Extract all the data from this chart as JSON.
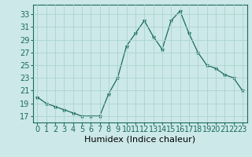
{
  "x": [
    0,
    1,
    2,
    3,
    4,
    5,
    6,
    7,
    8,
    9,
    10,
    11,
    12,
    13,
    14,
    15,
    16,
    17,
    18,
    19,
    20,
    21,
    22,
    23
  ],
  "y": [
    20,
    19,
    18.5,
    18,
    17.5,
    17,
    17,
    17,
    20.5,
    23,
    28,
    30,
    32,
    29.5,
    27.5,
    32,
    33.5,
    30,
    27,
    25,
    24.5,
    23.5,
    23,
    21
  ],
  "line_color": "#1a6b5a",
  "marker": "*",
  "marker_color": "#1a6b5a",
  "bg_color": "#cce8e8",
  "grid_color": "#aad4d0",
  "xlabel": "Humidex (Indice chaleur)",
  "xlim": [
    -0.5,
    23.5
  ],
  "ylim": [
    16,
    34.5
  ],
  "yticks": [
    17,
    19,
    21,
    23,
    25,
    27,
    29,
    31,
    33
  ],
  "xticks": [
    0,
    1,
    2,
    3,
    4,
    5,
    6,
    7,
    8,
    9,
    10,
    11,
    12,
    13,
    14,
    15,
    16,
    17,
    18,
    19,
    20,
    21,
    22,
    23
  ],
  "xtick_labels": [
    "0",
    "1",
    "2",
    "3",
    "4",
    "5",
    "6",
    "7",
    "8",
    "9",
    "10",
    "11",
    "12",
    "13",
    "14",
    "15",
    "16",
    "17",
    "18",
    "19",
    "20",
    "21",
    "22",
    "23"
  ],
  "xlabel_fontsize": 8,
  "tick_fontsize": 7
}
